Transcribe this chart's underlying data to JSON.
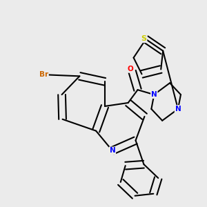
{
  "background_color": "#ebebeb",
  "bond_color": "#000000",
  "atom_colors": {
    "N": "#0000ff",
    "O": "#ff0000",
    "S": "#cccc00",
    "Br": "#cc6600",
    "C": "#000000"
  },
  "figsize": [
    3.0,
    3.0
  ],
  "dpi": 100,
  "bond_lw": 1.5,
  "double_sep": 0.018,
  "font_size": 7.5
}
